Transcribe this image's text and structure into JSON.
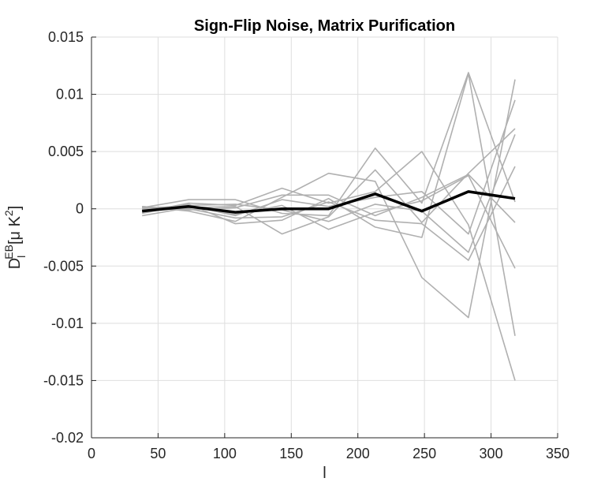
{
  "chart_data": {
    "type": "line",
    "title": "Sign-Flip Noise, Matrix Purification",
    "xlabel": "l",
    "ylabel": {
      "base": "D",
      "sup": "EB",
      "sub": "l",
      "unit_prefix": "[μ K",
      "unit_sup": "2",
      "unit_suffix": "]"
    },
    "xlim": [
      0,
      350
    ],
    "ylim": [
      -0.02,
      0.015
    ],
    "x_ticks": [
      0,
      50,
      100,
      150,
      200,
      250,
      300,
      350
    ],
    "y_ticks": [
      0.015,
      0.01,
      0.005,
      0,
      -0.005,
      -0.01,
      -0.015,
      -0.02
    ],
    "x_tick_labels": [
      "0",
      "50",
      "100",
      "150",
      "200",
      "250",
      "300",
      "350"
    ],
    "y_tick_labels": [
      "0.015",
      "0.01",
      "0.005",
      "0",
      "-0.005",
      "-0.01",
      "-0.015",
      "-0.02"
    ],
    "grid": true,
    "x": [
      38,
      73,
      108,
      143,
      178,
      213,
      248,
      283,
      318
    ],
    "realizations_color": "#b0b0b0",
    "mean_color": "#000000",
    "realizations": [
      [
        0.0001,
        0.0008,
        0.0008,
        -0.0004,
        -0.0006,
        0.0053,
        0.0005,
        0.0119,
        0.0006
      ],
      [
        -0.0003,
        0.0005,
        0.0003,
        0.0018,
        0.0005,
        0.0015,
        0.005,
        -0.0014,
        -0.015
      ],
      [
        0.0002,
        -0.0002,
        -0.0011,
        0.001,
        0.0031,
        0.0024,
        -0.006,
        -0.0095,
        0.0113
      ],
      [
        -0.0006,
        0.0001,
        0.0002,
        -0.0022,
        -0.0007,
        0.0034,
        -0.0012,
        0.0031,
        0.007
      ],
      [
        0.0,
        0.0003,
        -0.0006,
        0.0008,
        0.0002,
        0.001,
        0.0015,
        -0.0022,
        0.0095
      ],
      [
        0.0001,
        0.0002,
        -0.0005,
        0.0003,
        -0.0018,
        -0.0003,
        0.0007,
        0.0029,
        -0.0052
      ],
      [
        -0.0004,
        0.0004,
        -0.0013,
        -0.001,
        0.0009,
        -0.0016,
        -0.0025,
        0.0118,
        -0.0111
      ],
      [
        0.0002,
        -0.0001,
        0.0001,
        0.0012,
        0.0012,
        -0.0006,
        0.001,
        0.003,
        -0.0012
      ],
      [
        -0.0002,
        0.0003,
        0.0004,
        -0.0001,
        -0.0011,
        0.0004,
        -0.0002,
        -0.0038,
        0.0065
      ],
      [
        -0.0001,
        0.0,
        -0.0008,
        -0.0007,
        0.0006,
        -0.001,
        -0.0013,
        -0.0045,
        0.0037
      ]
    ],
    "mean": [
      -0.0002,
      0.0002,
      -0.0003,
      0.0,
      0.0,
      0.0013,
      -0.0002,
      0.0015,
      0.0009
    ]
  }
}
